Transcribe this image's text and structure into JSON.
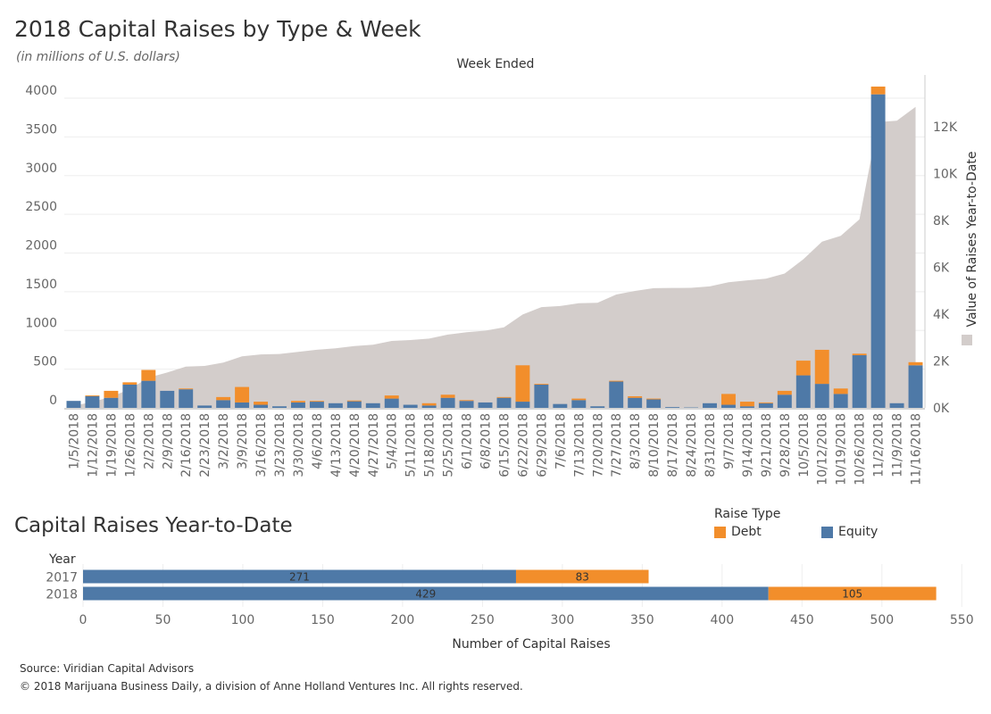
{
  "header": {
    "title": "2018 Capital Raises by Type & Week",
    "subtitle": "(in millions of U.S. dollars)",
    "x_axis_title": "Week Ended",
    "right_axis_title": "Value of Raises Year-to-Date"
  },
  "colors": {
    "equity": "#4e79a7",
    "debt": "#f28e2b",
    "area": "#d3cdcb"
  },
  "chart_data": [
    {
      "type": "bar",
      "stacked": true,
      "title": "2018 Capital Raises by Type & Week",
      "subtitle": "(in millions of U.S. dollars)",
      "xlabel": "Week Ended",
      "ylabel": "",
      "ylim": [
        0,
        4300
      ],
      "y_ticks": [
        0,
        500,
        1000,
        1500,
        2000,
        2500,
        3000,
        3500,
        4000
      ],
      "categories": [
        "1/5/2018",
        "1/12/2018",
        "1/19/2018",
        "1/26/2018",
        "2/2/2018",
        "2/9/2018",
        "2/16/2018",
        "2/23/2018",
        "3/2/2018",
        "3/9/2018",
        "3/16/2018",
        "3/23/2018",
        "3/30/2018",
        "4/6/2018",
        "4/13/2018",
        "4/20/2018",
        "4/27/2018",
        "5/4/2018",
        "5/11/2018",
        "5/18/2018",
        "5/25/2018",
        "6/1/2018",
        "6/8/2018",
        "6/15/2018",
        "6/22/2018",
        "6/29/2018",
        "7/6/2018",
        "7/13/2018",
        "7/20/2018",
        "7/27/2018",
        "8/3/2018",
        "8/10/2018",
        "8/17/2018",
        "8/24/2018",
        "8/31/2018",
        "9/7/2018",
        "9/14/2018",
        "9/21/2018",
        "9/28/2018",
        "10/5/2018",
        "10/12/2018",
        "10/19/2018",
        "10/26/2018",
        "11/2/2018",
        "11/9/2018",
        "11/16/2018"
      ],
      "series": [
        {
          "name": "Equity",
          "values": [
            90,
            150,
            130,
            300,
            350,
            220,
            240,
            30,
            100,
            70,
            40,
            20,
            70,
            80,
            60,
            85,
            60,
            120,
            40,
            30,
            130,
            90,
            70,
            130,
            80,
            300,
            50,
            100,
            20,
            340,
            130,
            110,
            10,
            5,
            60,
            40,
            20,
            60,
            170,
            420,
            310,
            180,
            680,
            4050,
            60,
            550
          ]
        },
        {
          "name": "Debt",
          "values": [
            0,
            10,
            90,
            30,
            140,
            0,
            10,
            0,
            40,
            200,
            40,
            0,
            20,
            10,
            0,
            10,
            0,
            40,
            0,
            30,
            40,
            10,
            0,
            10,
            470,
            10,
            0,
            20,
            0,
            10,
            20,
            10,
            0,
            0,
            0,
            140,
            60,
            10,
            50,
            190,
            440,
            70,
            20,
            100,
            0,
            40
          ]
        }
      ],
      "right_axis": {
        "label": "Value of Raises Year-to-Date",
        "ylim": [
          0,
          14200
        ],
        "ticks": [
          0,
          2000,
          4000,
          6000,
          8000,
          10000,
          12000
        ],
        "tick_labels": [
          "0K",
          "2K",
          "4K",
          "6K",
          "8K",
          "10K",
          "12K"
        ],
        "area_values": [
          90,
          250,
          470,
          800,
          1290,
          1510,
          1760,
          1790,
          1930,
          2200,
          2280,
          2300,
          2390,
          2480,
          2540,
          2635,
          2695,
          2855,
          2895,
          2955,
          3125,
          3225,
          3295,
          3435,
          3985,
          4295,
          4345,
          4465,
          4485,
          4835,
          4985,
          5105,
          5115,
          5120,
          5180,
          5360,
          5440,
          5510,
          5730,
          6340,
          7090,
          7340,
          8040,
          12190,
          12250,
          12840
        ]
      }
    },
    {
      "type": "bar",
      "orientation": "horizontal",
      "stacked": true,
      "title": "Capital Raises Year-to-Date",
      "xlabel": "Number of Capital Raises",
      "ylabel": "Year",
      "xlim": [
        0,
        550
      ],
      "x_ticks": [
        0,
        50,
        100,
        150,
        200,
        250,
        300,
        350,
        400,
        450,
        500,
        550
      ],
      "categories": [
        "2017",
        "2018"
      ],
      "series": [
        {
          "name": "Equity",
          "values": [
            271,
            429
          ]
        },
        {
          "name": "Debt",
          "values": [
            83,
            105
          ]
        }
      ],
      "legend": {
        "title": "Raise Type",
        "entries": [
          "Debt",
          "Equity"
        ],
        "position": "top-right"
      }
    }
  ],
  "bottom": {
    "title": "Capital Raises Year-to-Date",
    "y_axis_title": "Year",
    "x_axis_title": "Number of Capital Raises",
    "legend_title": "Raise Type",
    "legend_debt": "Debt",
    "legend_equity": "Equity"
  },
  "footer": {
    "source": "Source: Viridian Capital Advisors",
    "copyright": "© 2018 Marijuana Business Daily, a division of Anne Holland Ventures Inc. All rights reserved."
  }
}
